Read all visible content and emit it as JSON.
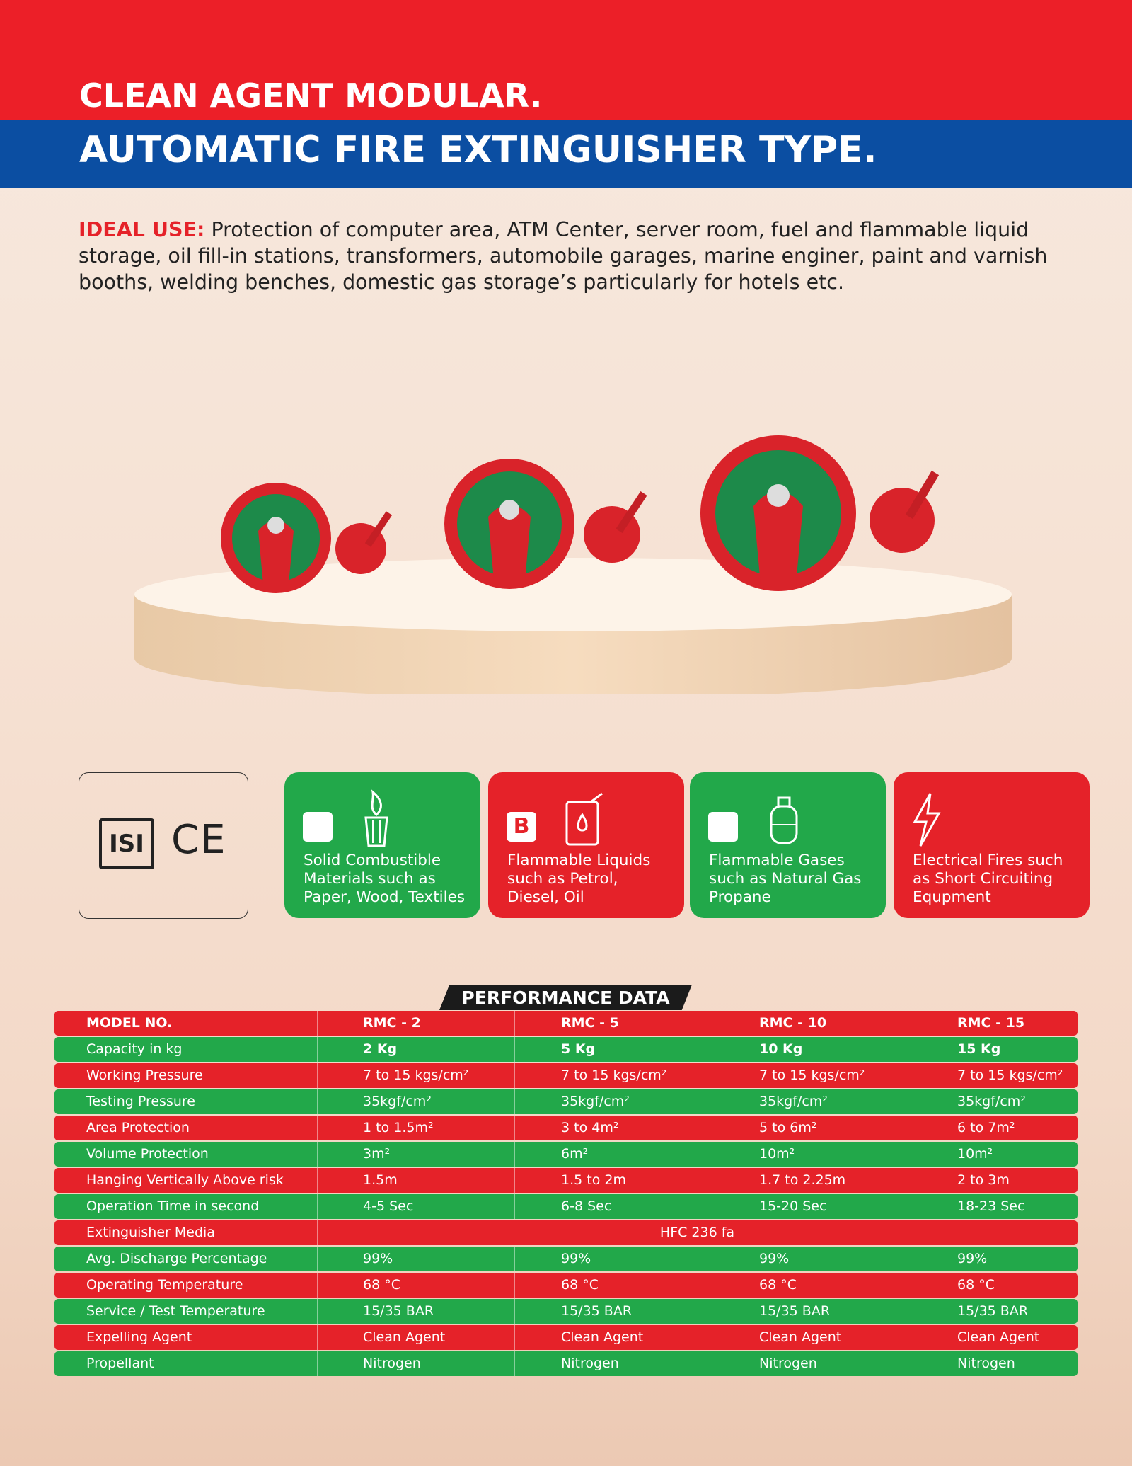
{
  "header": {
    "line1": "CLEAN AGENT MODULAR.",
    "line2": "AUTOMATIC FIRE EXTINGUISHER TYPE."
  },
  "ideal_use": {
    "label": "IDEAL USE:",
    "text": "Protection of computer area, ATM Center, server room, fuel and flammable liquid storage, oil fill-in stations, transformers, automobile garages, marine enginer, paint and varnish booths, welding benches, domestic gas storage’s particularly for hotels etc."
  },
  "certifications": [
    "ISI",
    "CE"
  ],
  "fire_classes": [
    {
      "lines": [
        "Solid Combustible",
        "Materials such as",
        "Paper, Wood, Textiles"
      ]
    },
    {
      "letter": "B",
      "lines": [
        "Flammable Liquids",
        "such as Petrol,",
        "Diesel, Oil"
      ]
    },
    {
      "lines": [
        "Flammable Gases",
        "such as Natural Gas",
        "Propane"
      ]
    },
    {
      "lines": [
        "Electrical Fires such",
        "as Short Circuiting",
        "Equpment"
      ]
    }
  ],
  "table": {
    "title": "PERFORMANCE DATA",
    "columns": [
      "MODEL NO.",
      "RMC - 2",
      "RMC - 5",
      "RMC - 10",
      "RMC - 15"
    ],
    "rows": [
      [
        "Capacity in kg",
        "2 Kg",
        "5 Kg",
        "10 Kg",
        "15 Kg"
      ],
      [
        "Working Pressure",
        "7 to 15 kgs/cm²",
        "7 to 15 kgs/cm²",
        "7 to 15 kgs/cm²",
        "7 to 15 kgs/cm²"
      ],
      [
        "Testing Pressure",
        "35kgf/cm²",
        "35kgf/cm²",
        "35kgf/cm²",
        "35kgf/cm²"
      ],
      [
        "Area Protection",
        "1 to 1.5m²",
        "3 to 4m²",
        "5 to 6m²",
        "6 to 7m²"
      ],
      [
        "Volume Protection",
        "3m²",
        "6m²",
        "10m²",
        "10m²"
      ],
      [
        "Hanging Vertically Above risk",
        "1.5m",
        "1.5 to 2m",
        "1.7 to 2.25m",
        "2 to 3m"
      ],
      [
        "Operation Time in second",
        "4-5 Sec",
        "6-8 Sec",
        "15-20 Sec",
        "18-23 Sec"
      ],
      [
        "Extinguisher Media",
        "HFC 236 fa"
      ],
      [
        "Avg. Discharge Percentage",
        "99%",
        "99%",
        "99%",
        "99%"
      ],
      [
        "Operating Temperature",
        "68 °C",
        "68 °C",
        "68 °C",
        "68 °C"
      ],
      [
        "Service / Test Temperature",
        "15/35 BAR",
        "15/35 BAR",
        "15/35 BAR",
        "15/35 BAR"
      ],
      [
        "Expelling Agent",
        "Clean Agent",
        "Clean Agent",
        "Clean Agent",
        "Clean Agent"
      ],
      [
        "Propellant",
        "Nitrogen",
        "Nitrogen",
        "Nitrogen",
        "Nitrogen"
      ]
    ]
  }
}
